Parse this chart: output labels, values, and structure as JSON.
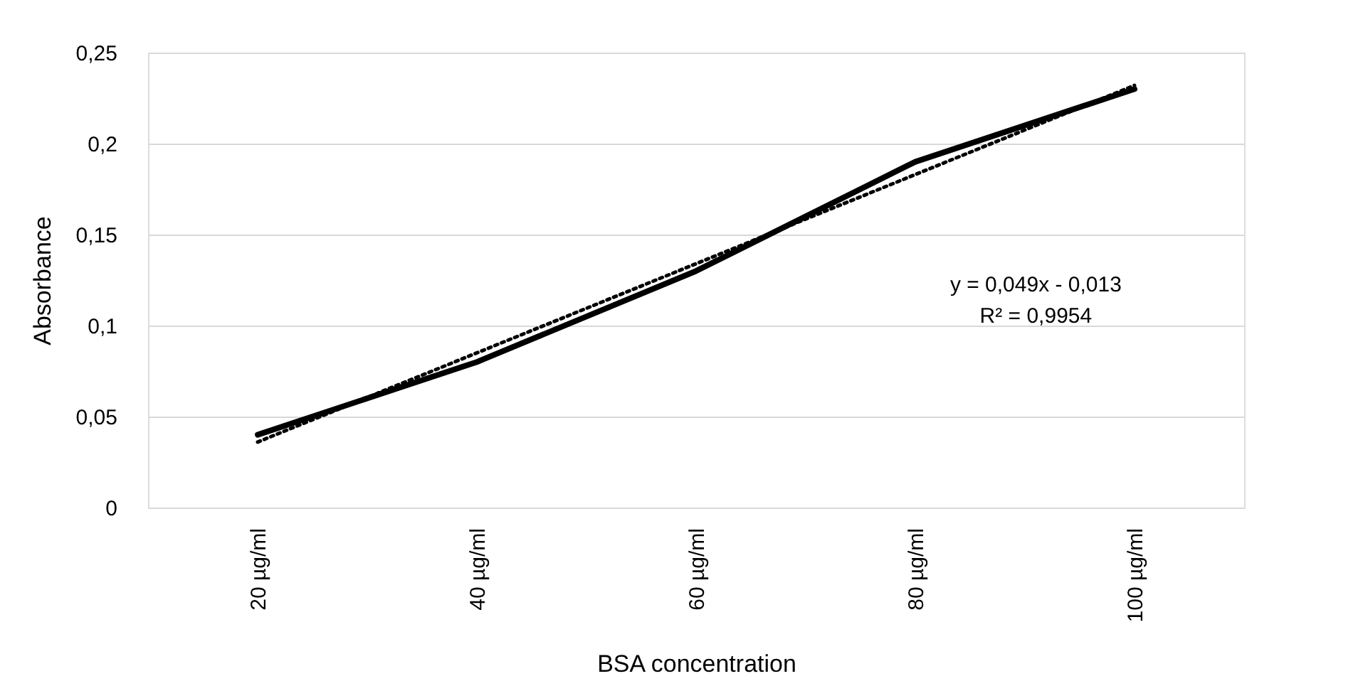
{
  "chart_data": {
    "type": "line",
    "categories": [
      "20 µg/ml",
      "40 µg/ml",
      "60 µg/ml",
      "80 µg/ml",
      "100 µg/ml"
    ],
    "series": [
      {
        "color": "#000000",
        "values": [
          0.04,
          0.08,
          0.13,
          0.19,
          0.23
        ],
        "line_style": "solid"
      },
      {
        "type": "line",
        "color": "#000000",
        "x": [
          "20 µg/ml",
          "40 µg/ml",
          "60 µg/ml",
          "80 µg/ml",
          "100 µg/ml"
        ],
        "values": [
          0.036,
          0.085,
          0.134,
          0.183,
          0.232
        ],
        "line_style": "dotted"
      }
    ],
    "xlabel": "BSA concentration",
    "ylabel": "Absorbance",
    "ylim": [
      0,
      0.25
    ],
    "yticks": [
      0,
      {
        "value": 0.05,
        "label": "0,05"
      },
      {
        "value": 0.1,
        "label": "0,1"
      },
      {
        "value": 0.15,
        "label": "0,15"
      },
      {
        "value": 0.2,
        "label": "0,2"
      },
      {
        "value": 0.25,
        "label": "0,25"
      }
    ],
    "grid": "y",
    "marker": "none",
    "annotations": [
      "y = 0,049x - 0,013",
      "R² = 0,9954"
    ]
  }
}
